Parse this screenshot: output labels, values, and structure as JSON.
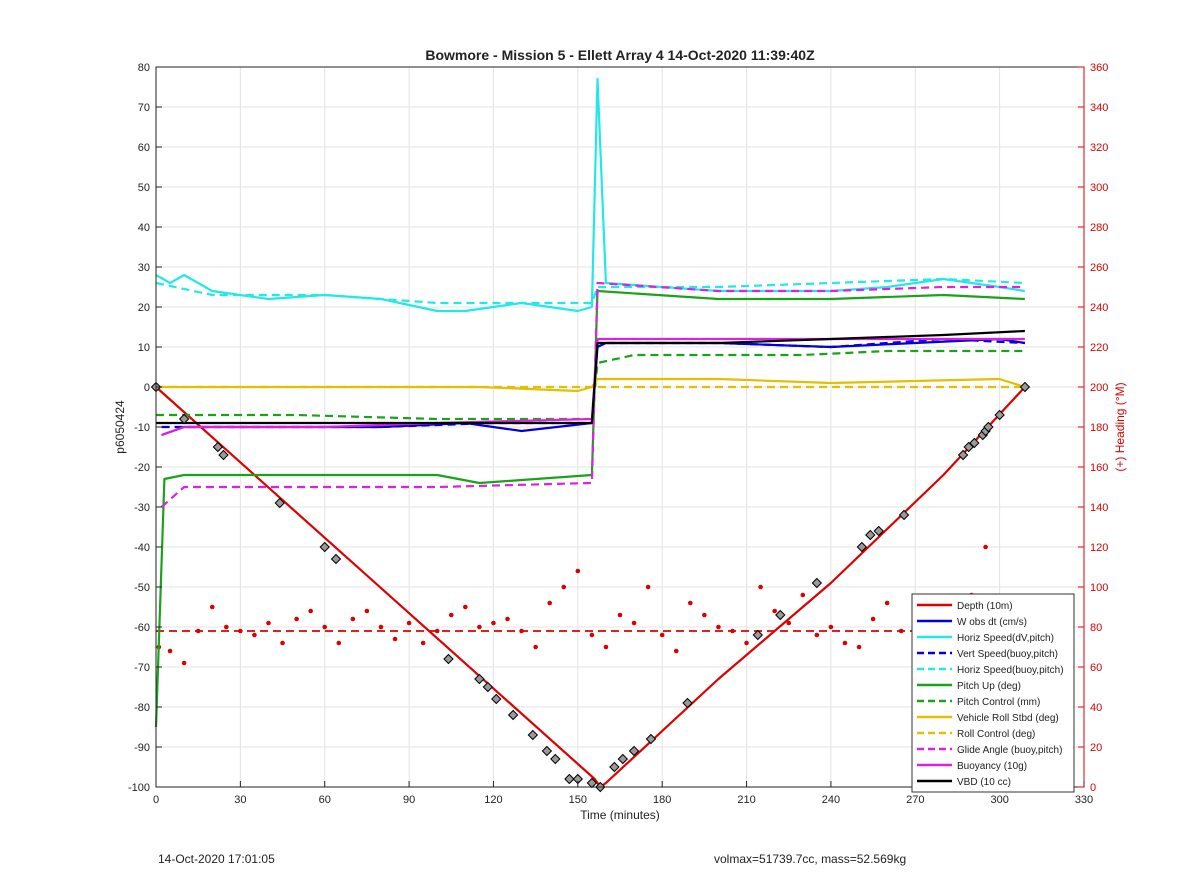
{
  "chart_data": {
    "type": "line",
    "title": "Bowmore - Mission 5 - Ellett Array 4 14-Oct-2020 11:39:40Z",
    "xlabel": "Time (minutes)",
    "ylabel": "p6050424",
    "y2label": "(+) Heading (°M)",
    "xlim": [
      0,
      330
    ],
    "ylim": [
      -100,
      80
    ],
    "y2lim": [
      0,
      360
    ],
    "xticks": [
      0,
      30,
      60,
      90,
      120,
      150,
      180,
      210,
      240,
      270,
      300,
      330
    ],
    "yticks": [
      -100,
      -90,
      -80,
      -70,
      -60,
      -50,
      -40,
      -30,
      -20,
      -10,
      0,
      10,
      20,
      30,
      40,
      50,
      60,
      70,
      80
    ],
    "y2ticks": [
      0,
      20,
      40,
      60,
      80,
      100,
      120,
      140,
      160,
      180,
      200,
      220,
      240,
      260,
      280,
      300,
      320,
      340,
      360
    ],
    "grid": true,
    "legend_position": "bottom-right",
    "colors": {
      "red": "#dd0000",
      "blue": "#0000dd",
      "cyan": "#22e8e8",
      "green": "#1aa31a",
      "yellow": "#e0c000",
      "magenta": "#e020e0",
      "black": "#000000",
      "axis_right": "#dd0000"
    },
    "series": [
      {
        "name": "Depth (10m)",
        "color": "red",
        "style": "solid",
        "x": [
          0,
          156,
          158,
          160,
          200,
          240,
          280,
          309
        ],
        "y": [
          0,
          -98,
          -100,
          -99,
          -73,
          -49,
          -22,
          0
        ]
      },
      {
        "name": "W obs dt (cm/s)",
        "color": "blue",
        "style": "solid",
        "x": [
          2,
          10,
          40,
          80,
          110,
          130,
          155,
          157,
          160,
          200,
          240,
          270,
          300,
          309
        ],
        "y": [
          -12,
          -10,
          -10,
          -10,
          -9,
          -11,
          -9,
          10,
          11,
          11,
          10,
          11,
          12,
          11
        ]
      },
      {
        "name": "Horiz Speed(dV,pitch)",
        "color": "cyan",
        "style": "solid",
        "x": [
          0,
          5,
          10,
          20,
          40,
          60,
          80,
          100,
          110,
          130,
          150,
          155,
          157,
          160,
          200,
          240,
          260,
          280,
          300,
          309
        ],
        "y": [
          28,
          26,
          28,
          24,
          22,
          23,
          22,
          19,
          19,
          21,
          19,
          20,
          77,
          26,
          24,
          24,
          25,
          27,
          25,
          24
        ]
      },
      {
        "name": "Vert Speed(buoy,pitch)",
        "color": "blue",
        "style": "dashed",
        "x": [
          2,
          40,
          80,
          120,
          155,
          157,
          200,
          240,
          280,
          309
        ],
        "y": [
          -10,
          -10,
          -10,
          -9,
          -9,
          11,
          11,
          10,
          12,
          11
        ]
      },
      {
        "name": "Horiz Speed(buoy,pitch)",
        "color": "cyan",
        "style": "dashed",
        "x": [
          0,
          20,
          60,
          100,
          130,
          155,
          157,
          200,
          240,
          280,
          309
        ],
        "y": [
          26,
          23,
          23,
          21,
          21,
          21,
          25,
          25,
          26,
          27,
          26
        ]
      },
      {
        "name": "Pitch Up (deg)",
        "color": "green",
        "style": "solid",
        "x": [
          0,
          3,
          10,
          50,
          100,
          115,
          155,
          157,
          200,
          240,
          280,
          309
        ],
        "y": [
          -85,
          -23,
          -22,
          -22,
          -22,
          -24,
          -22,
          24,
          22,
          22,
          23,
          22
        ]
      },
      {
        "name": "Pitch Control (mm)",
        "color": "green",
        "style": "dashed",
        "x": [
          0,
          5,
          50,
          100,
          155,
          157,
          170,
          200,
          230,
          260,
          309
        ],
        "y": [
          -7,
          -7,
          -7,
          -8,
          -8,
          6,
          8,
          8,
          8,
          9,
          9
        ]
      },
      {
        "name": "Vehicle Roll Stbd (deg)",
        "color": "yellow",
        "style": "solid",
        "x": [
          0,
          50,
          100,
          115,
          150,
          155,
          157,
          200,
          240,
          300,
          309
        ],
        "y": [
          0,
          0,
          0,
          0,
          -1,
          0,
          2,
          2,
          1,
          2,
          0
        ]
      },
      {
        "name": "Roll Control (deg)",
        "color": "yellow",
        "style": "dashed",
        "x": [
          0,
          150,
          157,
          309
        ],
        "y": [
          0,
          0,
          0,
          0
        ]
      },
      {
        "name": "Glide Angle (buoy,pitch)",
        "color": "magenta",
        "style": "dashed",
        "x": [
          2,
          10,
          60,
          100,
          155,
          157,
          200,
          240,
          280,
          309
        ],
        "y": [
          -30,
          -25,
          -25,
          -25,
          -24,
          26,
          24,
          24,
          25,
          25
        ]
      },
      {
        "name": "Buoyancy (10g)",
        "color": "magenta",
        "style": "solid",
        "x": [
          2,
          10,
          60,
          100,
          155,
          157,
          200,
          240,
          280,
          309
        ],
        "y": [
          -12,
          -10,
          -10,
          -9,
          -8,
          12,
          12,
          12,
          12,
          12
        ]
      },
      {
        "name": "VBD (10 cc)",
        "color": "black",
        "style": "solid",
        "x": [
          0,
          5,
          60,
          100,
          155,
          157,
          200,
          240,
          280,
          309
        ],
        "y": [
          -9,
          -9,
          -9,
          -9,
          -9,
          11,
          11,
          12,
          13,
          14
        ]
      }
    ],
    "heading_series": {
      "color": "red",
      "style": "dots",
      "axis": "right",
      "mean": 78,
      "x": [
        1,
        5,
        10,
        15,
        20,
        25,
        30,
        35,
        40,
        45,
        50,
        55,
        60,
        65,
        70,
        75,
        80,
        85,
        90,
        95,
        100,
        105,
        110,
        115,
        120,
        125,
        130,
        135,
        140,
        145,
        150,
        155,
        160,
        165,
        170,
        175,
        180,
        185,
        190,
        195,
        200,
        205,
        210,
        215,
        220,
        225,
        230,
        235,
        240,
        245,
        250,
        255,
        260,
        265,
        270,
        275,
        280,
        285,
        290,
        295,
        300
      ],
      "y": [
        70,
        68,
        62,
        78,
        90,
        80,
        78,
        76,
        82,
        72,
        84,
        88,
        80,
        72,
        84,
        88,
        80,
        74,
        82,
        72,
        78,
        86,
        90,
        80,
        82,
        84,
        78,
        70,
        92,
        100,
        108,
        76,
        70,
        86,
        82,
        100,
        76,
        68,
        92,
        86,
        80,
        78,
        72,
        100,
        88,
        82,
        96,
        76,
        80,
        72,
        70,
        84,
        92,
        78,
        90,
        70,
        80,
        60,
        96,
        120,
        90
      ]
    },
    "markers": {
      "style": "diamond",
      "x": [
        0,
        10,
        22,
        24,
        44,
        60,
        64,
        104,
        115,
        118,
        121,
        127,
        134,
        139,
        142,
        147,
        150,
        155,
        158,
        163,
        166,
        170,
        176,
        189,
        214,
        222,
        235,
        251,
        254,
        257,
        266,
        287,
        289,
        291,
        294,
        295,
        296,
        300,
        309
      ],
      "y": [
        0,
        -8,
        -15,
        -17,
        -29,
        -40,
        -43,
        -68,
        -73,
        -75,
        -78,
        -82,
        -87,
        -91,
        -93,
        -98,
        -98,
        -99,
        -100,
        -95,
        -93,
        -91,
        -88,
        -79,
        -62,
        -57,
        -49,
        -40,
        -37,
        -36,
        -32,
        -17,
        -15,
        -14,
        -12,
        -11,
        -10,
        -7,
        0
      ]
    }
  },
  "footer": {
    "timestamp": "14-Oct-2020 17:01:05",
    "summary": "volmax=51739.7cc, mass=52.569kg"
  }
}
